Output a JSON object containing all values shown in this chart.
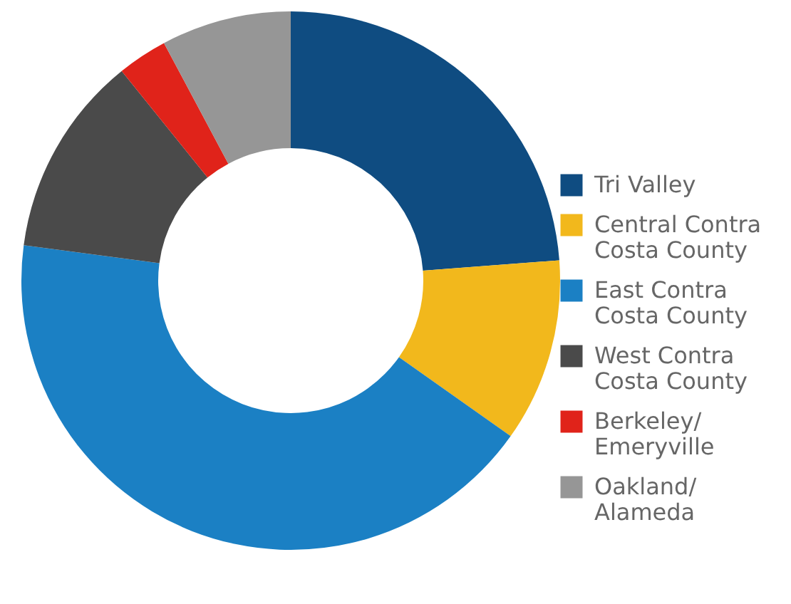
{
  "chart_data": {
    "type": "donut",
    "categories": [
      "Tri Valley",
      "Central Contra Costa County",
      "East Contra Costa County",
      "West Contra Costa County",
      "Berkeley/Emeryville",
      "Oakland/Alameda"
    ],
    "values": [
      23.8,
      11.0,
      42.3,
      12.1,
      3.0,
      7.8
    ],
    "colors": [
      "#0f4c81",
      "#f2b81c",
      "#1b80c4",
      "#4a4a4a",
      "#e0231a",
      "#969696"
    ],
    "legend": "right"
  }
}
